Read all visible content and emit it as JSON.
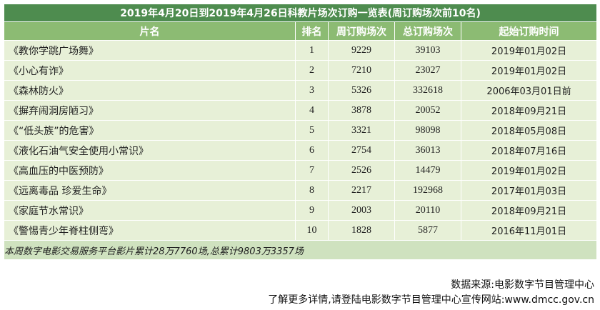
{
  "table": {
    "title": "2019年4月20日到2019年4月26日科教片场次订购一览表(周订购场次前10名)",
    "headers": [
      "片名",
      "排名",
      "周订购场次",
      "总订购场次",
      "起始订购时间"
    ],
    "rows": [
      {
        "name": "《教你学跳广场舞》",
        "rank": "1",
        "weekly": "9229",
        "total": "39103",
        "start": "2019年01月02日"
      },
      {
        "name": "《小心有诈》",
        "rank": "2",
        "weekly": "7210",
        "total": "23027",
        "start": "2019年01月02日"
      },
      {
        "name": "《森林防火》",
        "rank": "3",
        "weekly": "5326",
        "total": "332618",
        "start": "2006年03月01日前"
      },
      {
        "name": "《摒弃闹洞房陋习》",
        "rank": "4",
        "weekly": "3878",
        "total": "20052",
        "start": "2018年09月21日"
      },
      {
        "name": "《“低头族”的危害》",
        "rank": "5",
        "weekly": "3321",
        "total": "98098",
        "start": "2018年05月08日"
      },
      {
        "name": "《液化石油气安全使用小常识》",
        "rank": "6",
        "weekly": "2754",
        "total": "36013",
        "start": "2018年07月16日"
      },
      {
        "name": "《高血压的中医预防》",
        "rank": "7",
        "weekly": "2526",
        "total": "14479",
        "start": "2019年01月02日"
      },
      {
        "name": "《远离毒品 珍爱生命》",
        "rank": "8",
        "weekly": "2217",
        "total": "192968",
        "start": "2017年01月03日"
      },
      {
        "name": "《家庭节水常识》",
        "rank": "9",
        "weekly": "2003",
        "total": "20110",
        "start": "2018年09月21日"
      },
      {
        "name": "《警惕青少年脊柱侧弯》",
        "rank": "10",
        "weekly": "1828",
        "total": "5877",
        "start": "2016年11月01日"
      }
    ],
    "summary": "本周数字电影交易服务平台影片累计28万7760场,总累计9803万3357场"
  },
  "footer": {
    "source": "数据来源:电影数字节目管理中心",
    "more": "了解更多详情,请登陆电影数字节目管理中心宣传网站:www.dmcc.gov.cn"
  }
}
